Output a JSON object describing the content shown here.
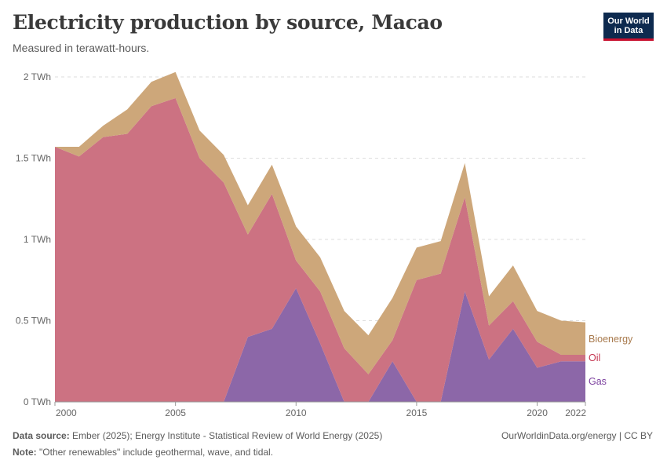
{
  "header": {
    "title": "Electricity production by source, Macao",
    "subtitle": "Measured in terawatt-hours.",
    "logo_line1": "Our World",
    "logo_line2": "in Data"
  },
  "footer": {
    "source_label": "Data source:",
    "source_text": "Ember (2025); Energy Institute - Statistical Review of World Energy (2025)",
    "note_label": "Note:",
    "note_text": "\"Other renewables\" include geothermal, wave, and tidal.",
    "url": "OurWorldinData.org/energy | CC BY"
  },
  "chart_data": {
    "type": "area",
    "stacked": true,
    "title": "Electricity production by source, Macao",
    "ylabel": "TWh",
    "ylim": [
      0,
      2
    ],
    "yticks": [
      0,
      0.5,
      1,
      1.5,
      2
    ],
    "ytick_labels": [
      "0 TWh",
      "0.5 TWh",
      "1 TWh",
      "1.5 TWh",
      "2 TWh"
    ],
    "xticks": [
      2000,
      2005,
      2010,
      2015,
      2020,
      2022
    ],
    "x": [
      2000,
      2001,
      2002,
      2003,
      2004,
      2005,
      2006,
      2007,
      2008,
      2009,
      2010,
      2011,
      2012,
      2013,
      2014,
      2015,
      2016,
      2017,
      2018,
      2019,
      2020,
      2021,
      2022
    ],
    "series": [
      {
        "name": "Gas",
        "color": "#8c67a8",
        "label_color": "#7b3f9e",
        "values": [
          0,
          0,
          0,
          0,
          0,
          0,
          0,
          0,
          0.4,
          0.45,
          0.7,
          0.36,
          0,
          0,
          0.25,
          0,
          0,
          0.68,
          0.26,
          0.45,
          0.21,
          0.25,
          0.25
        ]
      },
      {
        "name": "Oil",
        "color": "#cc7282",
        "label_color": "#c4344f",
        "values": [
          1.57,
          1.51,
          1.63,
          1.65,
          1.82,
          1.87,
          1.5,
          1.35,
          0.63,
          0.83,
          0.17,
          0.32,
          0.33,
          0.17,
          0.13,
          0.75,
          0.79,
          0.58,
          0.21,
          0.17,
          0.16,
          0.04,
          0.04
        ]
      },
      {
        "name": "Bioenergy",
        "color": "#cda77a",
        "label_color": "#a87a4d",
        "values": [
          0,
          0.06,
          0.07,
          0.15,
          0.15,
          0.16,
          0.17,
          0.17,
          0.18,
          0.18,
          0.21,
          0.21,
          0.23,
          0.24,
          0.26,
          0.2,
          0.2,
          0.21,
          0.18,
          0.22,
          0.19,
          0.21,
          0.2
        ]
      }
    ],
    "legend_placement": "right"
  }
}
